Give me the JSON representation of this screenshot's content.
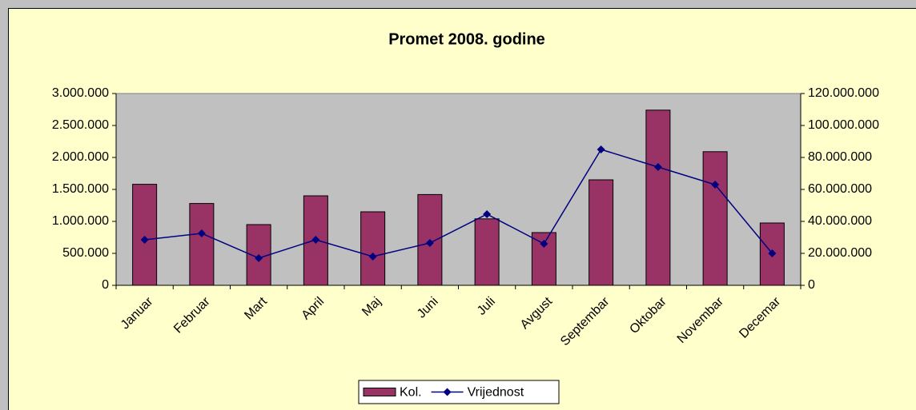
{
  "chart_data": {
    "type": "bar",
    "title": "Promet 2008. godine",
    "categories": [
      "Januar",
      "Februar",
      "Mart",
      "April",
      "Maj",
      "Juni",
      "Juli",
      "Avgust",
      "Septembar",
      "Oktobar",
      "Novembar",
      "Decemar"
    ],
    "series": [
      {
        "name": "Kol.",
        "type": "bar",
        "color": "#993366",
        "axis": "y",
        "values": [
          1580000,
          1280000,
          950000,
          1400000,
          1150000,
          1420000,
          1040000,
          825000,
          1650000,
          2740000,
          2090000,
          975000
        ]
      },
      {
        "name": "Vrijednost",
        "type": "line",
        "color": "#000080",
        "axis": "y2",
        "values": [
          28500000,
          32500000,
          17000000,
          28500000,
          18000000,
          26500000,
          44500000,
          26000000,
          85000000,
          74000000,
          63000000,
          20000000
        ]
      }
    ],
    "ylim": [
      0,
      3000000
    ],
    "yticks": [
      0,
      {
        "value": 500000,
        "label": "500.000"
      },
      {
        "value": 1000000,
        "label": "1.000.000"
      },
      {
        "value": 1500000,
        "label": "1.500.000"
      },
      {
        "value": 2000000,
        "label": "2.000.000"
      },
      {
        "value": 2500000,
        "label": "2.500.000"
      },
      {
        "value": 3000000,
        "label": "3.000.000"
      }
    ],
    "y2lim": [
      0,
      120000000
    ],
    "y2ticks": [
      0,
      {
        "value": 20000000,
        "label": "20.000.000"
      },
      {
        "value": 40000000,
        "label": "40.000.000"
      },
      {
        "value": 60000000,
        "label": "60.000.000"
      },
      {
        "value": 80000000,
        "label": "80.000.000"
      },
      {
        "value": 100000000,
        "label": "100.000.000"
      },
      {
        "value": 120000000,
        "label": "120.000.000"
      }
    ],
    "grid": false,
    "legend": "bottom"
  }
}
